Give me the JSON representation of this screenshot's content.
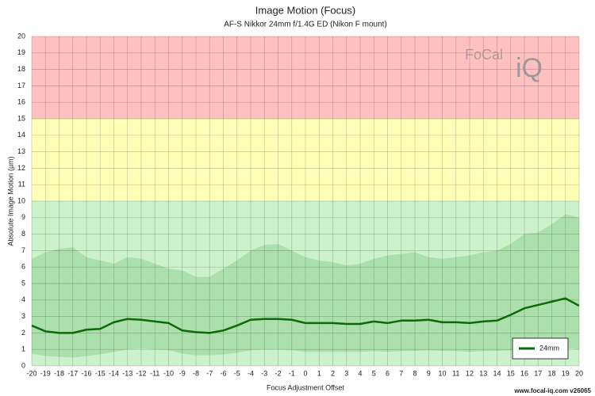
{
  "chart_data": {
    "type": "line",
    "title": "Image Motion (Focus)",
    "subtitle": "AF-S Nikkor 24mm f/1.4G ED (Nikon F mount)",
    "x_label": "Focus Adjustment Offset",
    "y_label": "Absolute Image Motion (µm)",
    "x": [
      -20,
      -19,
      -18,
      -17,
      -16,
      -15,
      -14,
      -13,
      -12,
      -11,
      -10,
      -9,
      -8,
      -7,
      -6,
      -5,
      -4,
      -3,
      -2,
      -1,
      0,
      1,
      2,
      3,
      4,
      5,
      6,
      7,
      8,
      9,
      10,
      11,
      12,
      13,
      14,
      15,
      16,
      17,
      18,
      19,
      20
    ],
    "series": [
      {
        "name": "24mm",
        "color": "#0b6b0b",
        "values": [
          2.45,
          2.1,
          2.0,
          2.0,
          2.2,
          2.25,
          2.65,
          2.85,
          2.8,
          2.7,
          2.6,
          2.15,
          2.05,
          2.0,
          2.15,
          2.45,
          2.8,
          2.85,
          2.85,
          2.8,
          2.6,
          2.6,
          2.6,
          2.55,
          2.55,
          2.7,
          2.6,
          2.75,
          2.75,
          2.8,
          2.65,
          2.65,
          2.6,
          2.7,
          2.75,
          3.1,
          3.5,
          3.7,
          3.9,
          4.1,
          3.65
        ]
      }
    ],
    "band": {
      "color": "#8fcf8f",
      "upper": [
        6.5,
        6.9,
        7.1,
        7.2,
        6.6,
        6.4,
        6.2,
        6.6,
        6.5,
        6.2,
        5.9,
        5.8,
        5.4,
        5.4,
        5.9,
        6.4,
        7.0,
        7.35,
        7.4,
        7.0,
        6.6,
        6.4,
        6.3,
        6.1,
        6.2,
        6.5,
        6.7,
        6.8,
        6.9,
        6.6,
        6.5,
        6.6,
        6.7,
        6.9,
        7.0,
        7.4,
        8.0,
        8.1,
        8.6,
        9.2,
        9.0
      ],
      "lower": [
        0.75,
        0.6,
        0.55,
        0.5,
        0.6,
        0.7,
        0.85,
        1.0,
        1.05,
        1.0,
        0.95,
        0.75,
        0.65,
        0.65,
        0.7,
        0.8,
        0.95,
        1.0,
        1.0,
        0.95,
        0.85,
        0.85,
        0.85,
        0.85,
        0.85,
        0.9,
        0.85,
        0.9,
        0.9,
        0.95,
        0.9,
        0.9,
        0.85,
        0.9,
        0.9,
        0.95,
        1.0,
        1.0,
        1.05,
        1.1,
        1.0
      ]
    },
    "zones": [
      {
        "from": 0,
        "to": 10,
        "color": "#ccf2cc"
      },
      {
        "from": 10,
        "to": 15,
        "color": "#ffffb8"
      },
      {
        "from": 15,
        "to": 20,
        "color": "#ffc0c0"
      }
    ],
    "xlim": [
      -20,
      20
    ],
    "ylim": [
      0,
      20
    ],
    "xticks": [
      -20,
      -19,
      -18,
      -17,
      -16,
      -15,
      -14,
      -13,
      -12,
      -11,
      -10,
      -9,
      -8,
      -7,
      -6,
      -5,
      -4,
      -3,
      -2,
      -1,
      0,
      1,
      2,
      3,
      4,
      5,
      6,
      7,
      8,
      9,
      10,
      11,
      12,
      13,
      14,
      15,
      16,
      17,
      18,
      19,
      20
    ],
    "yticks": [
      0,
      1,
      2,
      3,
      4,
      5,
      6,
      7,
      8,
      9,
      10,
      11,
      12,
      13,
      14,
      15,
      16,
      17,
      18,
      19,
      20
    ],
    "grid": true,
    "legend": "lower right"
  },
  "logo": {
    "left": "FoCal",
    "right": "iQ"
  },
  "footer": "www.focal-iq.com  v26065"
}
